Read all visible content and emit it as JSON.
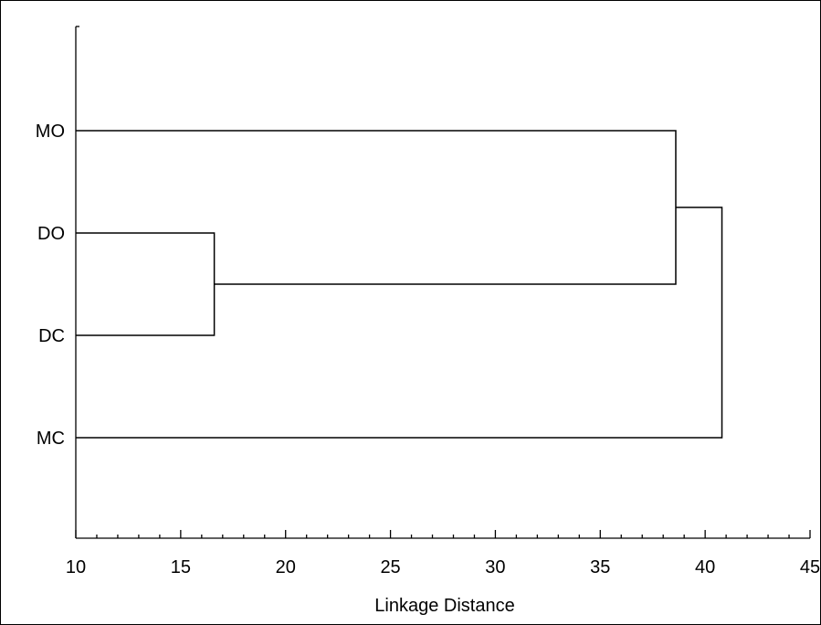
{
  "chart_data": {
    "type": "dendrogram",
    "title": "",
    "xlabel": "Linkage Distance",
    "ylabel": "",
    "xlim": [
      10,
      45
    ],
    "x_ticks": [
      10,
      15,
      20,
      25,
      30,
      35,
      40,
      45
    ],
    "x_minor_step": 1,
    "leaves": [
      "MO",
      "DO",
      "DC",
      "MC"
    ],
    "merges": [
      {
        "members": [
          "DO",
          "DC"
        ],
        "distance": 16.6
      },
      {
        "members": [
          "MO",
          "DO+DC"
        ],
        "distance": 38.6
      },
      {
        "members": [
          "MO+DO+DC",
          "MC"
        ],
        "distance": 40.8
      }
    ],
    "grid": false,
    "legend": "none",
    "line_color": "#000000"
  }
}
